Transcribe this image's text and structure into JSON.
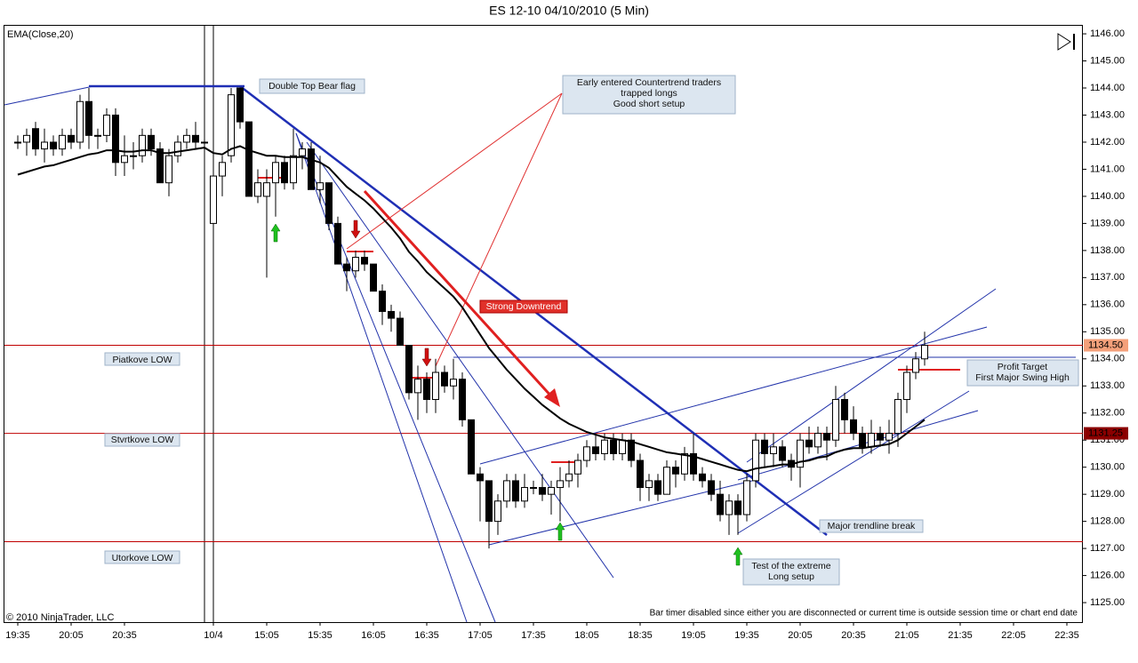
{
  "chart_data": {
    "type": "candlestick",
    "title": "ES 12-10  04/10/2010 (5 Min)",
    "copyright": "© 2010 NinjaTrader, LLC",
    "notice": "Bar timer disabled since either you are disconnected or current time is outside session time or chart end date",
    "categories": [
      "19:35",
      null,
      null,
      null,
      null,
      null,
      "20:05",
      null,
      null,
      null,
      null,
      null,
      "20:35",
      null,
      null,
      null,
      null,
      null,
      null,
      null,
      null,
      null,
      "10/4",
      null,
      null,
      null,
      null,
      null,
      "15:05",
      null,
      null,
      null,
      null,
      null,
      "15:35",
      null,
      null,
      null,
      null,
      null,
      "16:05",
      null,
      null,
      null,
      null,
      null,
      "16:35",
      null,
      null,
      null,
      null,
      null,
      "17:05",
      null,
      null,
      null,
      null,
      null,
      "17:35",
      null,
      null,
      null,
      null,
      null,
      "18:05",
      null,
      null,
      null,
      null,
      null,
      "18:35",
      null,
      null,
      null,
      null,
      null,
      "19:05",
      null,
      null,
      null,
      null,
      null,
      "19:35",
      null,
      null,
      null,
      null,
      null,
      "20:05",
      null,
      null,
      null,
      null,
      null,
      "20:35",
      null,
      null,
      null,
      null,
      null,
      "21:05",
      null,
      null,
      null,
      null,
      null,
      "21:35",
      null,
      null,
      null,
      null,
      null,
      "22:05",
      null,
      null,
      null,
      null,
      null,
      "22:35"
    ],
    "open": [
      1142,
      1142,
      1142.5,
      1141.75,
      1142,
      1141.75,
      1142.25,
      1142,
      1143.5,
      1142.25,
      1142.25,
      1143,
      1141.25,
      1141.5,
      1141.5,
      1142.25,
      1141.75,
      1140.5,
      1141.5,
      1142,
      1142.25,
      1142,
      1139,
      1140.75,
      1141.5,
      1144,
      1142.75,
      1140,
      1140,
      1140.5,
      1141.25,
      1140.5,
      1141.5,
      1141.75,
      1140.25,
      1140.5,
      1139,
      1137.5,
      1137.25,
      1137.75,
      1137.5,
      1136.5,
      1135.75,
      1135.5,
      1134.5,
      1132.75,
      1133.25,
      1132.5,
      1133.5,
      1133,
      1133.25,
      1131.75,
      1129.75,
      1129.5,
      1128,
      1128.75,
      1129.5,
      1128.75,
      1129.25,
      1129.25,
      1129,
      1129.25,
      1129.5,
      1129.75,
      1130.25,
      1130.75,
      1130.5,
      1131,
      1130.5,
      1131,
      1130.25,
      1129.25,
      1129.5,
      1129,
      1130,
      1129.75,
      1130.5,
      1129.75,
      1129.5,
      1129,
      1128.25,
      1128.75,
      1128.25,
      1129.5,
      1131,
      1130.5,
      1130.75,
      1130.25,
      1130,
      1131,
      1130.75,
      1131.25,
      1131,
      1132.5,
      1131.75,
      1131.25,
      1130.75,
      1131.25,
      1131,
      1131.25,
      1132.5,
      1133.5,
      1134,
      null,
      null,
      null,
      null,
      null,
      null,
      null,
      null,
      null,
      null,
      null,
      null,
      null,
      null,
      null,
      null
    ],
    "high": [
      1142.25,
      1142.5,
      1142.75,
      1142.5,
      1142.25,
      1142.5,
      1142.5,
      1143.75,
      1144,
      1142.5,
      1143.25,
      1143.25,
      1142.25,
      1142,
      1142.5,
      1142.5,
      1142,
      1141.75,
      1142.25,
      1142.5,
      1142.75,
      1142.25,
      1141,
      1141.5,
      1144,
      1144,
      1142.75,
      1141,
      1141,
      1141.5,
      1141.5,
      1142.5,
      1142,
      1142,
      1141.5,
      1140.5,
      1139.25,
      1137.75,
      1138,
      1138,
      1137.5,
      1136.75,
      1136,
      1135.75,
      1134.5,
      1133.75,
      1133.5,
      1134,
      1133.75,
      1134,
      1133.5,
      1131.75,
      1130,
      1129.5,
      1129,
      1129.75,
      1129.75,
      1129.75,
      1129.5,
      1129.75,
      1129.5,
      1130,
      1130.25,
      1130.5,
      1131,
      1131.25,
      1131.25,
      1131.25,
      1131.25,
      1131.25,
      1130.5,
      1129.75,
      1129.75,
      1130.25,
      1130.25,
      1130.75,
      1131.25,
      1130,
      1129.75,
      1129.5,
      1129,
      1129,
      1129.75,
      1131.25,
      1131.25,
      1131.25,
      1131,
      1130.5,
      1131.25,
      1131.5,
      1131.5,
      1131.5,
      1133,
      1132.75,
      1132.25,
      1131.5,
      1131.75,
      1131.5,
      1131.75,
      1132.75,
      1133.75,
      1134.25,
      1135,
      null,
      null,
      null,
      null,
      null,
      null,
      null,
      null,
      null,
      null,
      null,
      null,
      null,
      null,
      null,
      null
    ],
    "low": [
      1141.75,
      1141.5,
      1141.5,
      1141.25,
      1141.5,
      1141.5,
      1141.75,
      1141.75,
      1141.75,
      1141.75,
      1142,
      1140.75,
      1140.75,
      1141,
      1141.25,
      1141.5,
      1140.5,
      1140,
      1141.25,
      1141.75,
      1141.75,
      1141.75,
      1138.75,
      1140,
      1141.25,
      1142.5,
      1140,
      1139.75,
      1137,
      1139.25,
      1140.25,
      1140.25,
      1141,
      1140.25,
      1139.75,
      1138.75,
      1137.5,
      1136.5,
      1137,
      1137.25,
      1136.5,
      1135.25,
      1135,
      1134.5,
      1132.5,
      1131.75,
      1132,
      1132,
      1132.75,
      1132.5,
      1131.5,
      1129.75,
      1128,
      1127,
      1127.5,
      1128.5,
      1128.5,
      1128.5,
      1129,
      1128.75,
      1128.25,
      1128,
      1129.25,
      1129.25,
      1130,
      1130.25,
      1130.25,
      1130.25,
      1130.25,
      1130,
      1128.75,
      1128.75,
      1128.75,
      1129,
      1129.25,
      1129.5,
      1129.5,
      1129.25,
      1128.75,
      1128,
      1127.5,
      1127.5,
      1128,
      1129.25,
      1130,
      1130,
      1130,
      1129.5,
      1129.25,
      1130.5,
      1130.5,
      1130.25,
      1130.75,
      1131.25,
      1131,
      1130.5,
      1130.5,
      1130.75,
      1130.5,
      1130.75,
      1132,
      1133.25,
      1133.75,
      null,
      null,
      null,
      null,
      null,
      null,
      null,
      null,
      null,
      null,
      null,
      null,
      null,
      null,
      null,
      null
    ],
    "close": [
      1142,
      1142.25,
      1141.75,
      1142,
      1141.75,
      1142.25,
      1142,
      1143.5,
      1142.25,
      1142.25,
      1143,
      1141.25,
      1141.5,
      1141.5,
      1142.25,
      1141.75,
      1140.5,
      1141.5,
      1142,
      1142.25,
      1142,
      1142,
      1140.75,
      1141.25,
      1143.75,
      1142.75,
      1140,
      1140.5,
      1140.5,
      1141.25,
      1140.5,
      1141.5,
      1141.75,
      1140.25,
      1140.5,
      1139,
      1137.5,
      1137.25,
      1137.75,
      1137.5,
      1136.5,
      1135.75,
      1135.5,
      1134.5,
      1132.75,
      1133.25,
      1132.5,
      1133.5,
      1133,
      1133.25,
      1131.75,
      1129.75,
      1129.5,
      1128,
      1128.75,
      1129.5,
      1128.75,
      1129.25,
      1129.25,
      1129,
      1129.25,
      1129.5,
      1129.75,
      1130.25,
      1130.75,
      1130.5,
      1131,
      1130.5,
      1131,
      1130.25,
      1129.25,
      1129.5,
      1129,
      1130,
      1129.75,
      1130.5,
      1129.75,
      1129.5,
      1129,
      1128.25,
      1128.75,
      1128.25,
      1129.5,
      1131,
      1130.5,
      1130.75,
      1130.25,
      1130,
      1131,
      1130.75,
      1131.25,
      1131,
      1132.5,
      1131.75,
      1131.25,
      1130.75,
      1131.25,
      1131,
      1131.25,
      1132.5,
      1133.5,
      1134,
      1134.5,
      null,
      null,
      null,
      null,
      null,
      null,
      null,
      null,
      null,
      null,
      null,
      null,
      null,
      null,
      null,
      null
    ],
    "up_color": "#ffffff",
    "down_color": "#000000",
    "indicator": {
      "name": "EMA(Close,20)",
      "color": "#000000",
      "values": [
        1140.8,
        1140.9,
        1141.0,
        1141.1,
        1141.15,
        1141.25,
        1141.35,
        1141.45,
        1141.55,
        1141.6,
        1141.7,
        1141.7,
        1141.65,
        1141.65,
        1141.7,
        1141.7,
        1141.6,
        1141.6,
        1141.65,
        1141.7,
        1141.75,
        1141.8,
        1141.6,
        1141.55,
        1141.75,
        1141.85,
        1141.7,
        1141.6,
        1141.5,
        1141.5,
        1141.45,
        1141.45,
        1141.45,
        1141.35,
        1141.25,
        1141.05,
        1140.7,
        1140.35,
        1140.1,
        1139.85,
        1139.55,
        1139.2,
        1138.85,
        1138.45,
        1137.95,
        1137.6,
        1137.2,
        1136.9,
        1136.6,
        1136.3,
        1135.9,
        1135.4,
        1134.9,
        1134.4,
        1134.0,
        1133.6,
        1133.25,
        1132.9,
        1132.6,
        1132.3,
        1132.05,
        1131.8,
        1131.6,
        1131.45,
        1131.3,
        1131.2,
        1131.1,
        1131.05,
        1131.0,
        1130.95,
        1130.85,
        1130.75,
        1130.65,
        1130.55,
        1130.5,
        1130.45,
        1130.4,
        1130.3,
        1130.2,
        1130.1,
        1130.0,
        1129.9,
        1129.85,
        1129.95,
        1130.0,
        1130.05,
        1130.1,
        1130.1,
        1130.2,
        1130.25,
        1130.35,
        1130.4,
        1130.55,
        1130.65,
        1130.7,
        1130.7,
        1130.75,
        1130.8,
        1130.85,
        1131.0,
        1131.25,
        1131.5,
        1131.75,
        null,
        null,
        null,
        null,
        null,
        null,
        null,
        null,
        null,
        null,
        null,
        null,
        null,
        null,
        null,
        null
      ]
    },
    "levels": [
      {
        "value": 1134.5,
        "label": "1134.50",
        "color": "#c00000",
        "label_fill": "#f4a07a",
        "label_color": "#000000"
      },
      {
        "value": 1131.25,
        "label": "1131.25",
        "color": "#c00000",
        "label_fill": "#8b0000",
        "label_color": "#ffffff"
      },
      {
        "value": 1127.25,
        "color": "#c00000"
      }
    ],
    "ylim": [
      1124.28,
      1146.33
    ],
    "yticks": [
      {
        "value": 1125,
        "label": "1125.00"
      },
      {
        "value": 1126,
        "label": "1126.00"
      },
      {
        "value": 1127,
        "label": "1127.00"
      },
      {
        "value": 1128,
        "label": "1128.00"
      },
      {
        "value": 1129,
        "label": "1129.00"
      },
      {
        "value": 1130,
        "label": "1130.00"
      },
      {
        "value": 1131,
        "label": "1131.00"
      },
      {
        "value": 1132,
        "label": "1132.00"
      },
      {
        "value": 1133,
        "label": "1133.00"
      },
      {
        "value": 1134,
        "label": "1134.00"
      },
      {
        "value": 1135,
        "label": "1135.00"
      },
      {
        "value": 1136,
        "label": "1136.00"
      },
      {
        "value": 1137,
        "label": "1137.00"
      },
      {
        "value": 1138,
        "label": "1138.00"
      },
      {
        "value": 1139,
        "label": "1139.00"
      },
      {
        "value": 1140,
        "label": "1140.00"
      },
      {
        "value": 1141,
        "label": "1141.00"
      },
      {
        "value": 1142,
        "label": "1142.00"
      },
      {
        "value": 1143,
        "label": "1143.00"
      },
      {
        "value": 1144,
        "label": "1144.00"
      },
      {
        "value": 1145,
        "label": "1145.00"
      },
      {
        "value": 1146,
        "label": "1146.00"
      }
    ],
    "grid": false,
    "annotations": [
      {
        "lines": [
          "Double Top Bear flag"
        ]
      },
      {
        "lines": [
          "Early entered Countertrend traders",
          "trapped longs",
          "Good short setup"
        ]
      },
      {
        "lines": [
          "Strong Downtrend"
        ]
      },
      {
        "lines": [
          "Piatkove LOW"
        ]
      },
      {
        "lines": [
          "Stvrtkove LOW"
        ]
      },
      {
        "lines": [
          "Utorkove LOW"
        ]
      },
      {
        "lines": [
          "Profit Target",
          "First Major Swing High"
        ]
      },
      {
        "lines": [
          "Major trendline break"
        ]
      },
      {
        "lines": [
          "Test of the extreme",
          "Long setup"
        ]
      }
    ]
  }
}
